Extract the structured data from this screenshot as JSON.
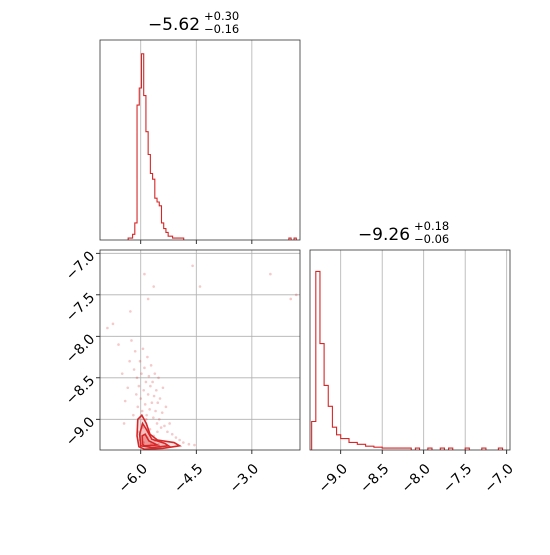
{
  "chart_data": {
    "type": "corner",
    "panels": [
      {
        "id": "hist_param1",
        "type": "histogram",
        "title": {
          "median": "−5.62",
          "plus": "+0.30",
          "minus": "−0.16"
        },
        "xlim": [
          -7.1,
          -1.7
        ],
        "x_ticks": [
          -6.0,
          -4.5,
          -3.0
        ],
        "grid": true,
        "color": "#d62728",
        "bins": [
          [
            -6.34,
            -6.28,
            0.01
          ],
          [
            -6.28,
            -6.22,
            0.01
          ],
          [
            -6.22,
            -6.16,
            0.03
          ],
          [
            -6.16,
            -6.1,
            0.09
          ],
          [
            -6.1,
            -6.04,
            0.71
          ],
          [
            -6.04,
            -5.98,
            0.8
          ],
          [
            -5.98,
            -5.92,
            0.98
          ],
          [
            -5.92,
            -5.86,
            0.76
          ],
          [
            -5.86,
            -5.8,
            0.57
          ],
          [
            -5.8,
            -5.74,
            0.45
          ],
          [
            -5.74,
            -5.68,
            0.35
          ],
          [
            -5.68,
            -5.62,
            0.32
          ],
          [
            -5.62,
            -5.56,
            0.22
          ],
          [
            -5.56,
            -5.5,
            0.2
          ],
          [
            -5.5,
            -5.44,
            0.18
          ],
          [
            -5.44,
            -5.38,
            0.09
          ],
          [
            -5.38,
            -5.32,
            0.06
          ],
          [
            -5.32,
            -5.26,
            0.04
          ],
          [
            -5.26,
            -5.2,
            0.02
          ],
          [
            -5.2,
            -5.14,
            0.02
          ],
          [
            -5.14,
            -5.08,
            0.01
          ],
          [
            -5.08,
            -5.02,
            0.01
          ],
          [
            -5.02,
            -4.96,
            0.01
          ],
          [
            -4.96,
            -4.9,
            0.01
          ],
          [
            -4.9,
            -4.84,
            0.01
          ],
          [
            -2.0,
            -1.94,
            0.01
          ],
          [
            -1.86,
            -1.8,
            0.01
          ]
        ]
      },
      {
        "id": "hist_param2",
        "type": "histogram",
        "title": {
          "median": "−9.26",
          "plus": "+0.18",
          "minus": "−0.06"
        },
        "xlim": [
          -9.37,
          -6.96
        ],
        "x_ticks": [
          -9.0,
          -8.5,
          -8.0,
          -7.5,
          -7.0
        ],
        "grid": true,
        "color": "#d62728",
        "bins": [
          [
            -9.35,
            -9.3,
            0.15
          ],
          [
            -9.3,
            -9.25,
            0.94
          ],
          [
            -9.25,
            -9.2,
            0.56
          ],
          [
            -9.2,
            -9.15,
            0.34
          ],
          [
            -9.15,
            -9.1,
            0.23
          ],
          [
            -9.1,
            -9.05,
            0.12
          ],
          [
            -9.05,
            -9.0,
            0.08
          ],
          [
            -9.0,
            -8.95,
            0.06
          ],
          [
            -8.95,
            -8.9,
            0.06
          ],
          [
            -8.9,
            -8.85,
            0.04
          ],
          [
            -8.85,
            -8.8,
            0.04
          ],
          [
            -8.8,
            -8.75,
            0.03
          ],
          [
            -8.75,
            -8.7,
            0.03
          ],
          [
            -8.7,
            -8.65,
            0.02
          ],
          [
            -8.65,
            -8.6,
            0.02
          ],
          [
            -8.6,
            -8.55,
            0.015
          ],
          [
            -8.55,
            -8.5,
            0.015
          ],
          [
            -8.5,
            -8.45,
            0.01
          ],
          [
            -8.45,
            -8.4,
            0.01
          ],
          [
            -8.4,
            -8.35,
            0.01
          ],
          [
            -8.35,
            -8.3,
            0.01
          ],
          [
            -8.3,
            -8.25,
            0.01
          ],
          [
            -8.25,
            -8.2,
            0.01
          ],
          [
            -8.2,
            -8.15,
            0.01
          ],
          [
            -8.1,
            -8.05,
            0.01
          ],
          [
            -7.95,
            -7.9,
            0.01
          ],
          [
            -7.8,
            -7.75,
            0.01
          ],
          [
            -7.7,
            -7.65,
            0.01
          ],
          [
            -7.5,
            -7.45,
            0.01
          ],
          [
            -7.3,
            -7.25,
            0.01
          ],
          [
            -7.1,
            -7.05,
            0.01
          ]
        ]
      },
      {
        "id": "joint",
        "type": "scatter_contour",
        "xlim": [
          -7.1,
          -1.7
        ],
        "ylim": [
          -9.37,
          -6.96
        ],
        "x_ticks": [
          -6.0,
          -4.5,
          -3.0
        ],
        "y_ticks": [
          -7.0,
          -7.5,
          -8.0,
          -8.5,
          -9.0
        ],
        "grid": true,
        "color": "#d62728",
        "contours": [
          [
            [
              -6.05,
              -9.33
            ],
            [
              -6.1,
              -9.2
            ],
            [
              -6.08,
              -9.0
            ],
            [
              -5.97,
              -8.95
            ],
            [
              -5.85,
              -9.05
            ],
            [
              -5.75,
              -9.18
            ],
            [
              -5.55,
              -9.25
            ],
            [
              -5.1,
              -9.28
            ],
            [
              -4.95,
              -9.32
            ],
            [
              -5.4,
              -9.35
            ],
            [
              -5.9,
              -9.36
            ],
            [
              -6.05,
              -9.33
            ]
          ],
          [
            [
              -6.0,
              -9.32
            ],
            [
              -6.03,
              -9.18
            ],
            [
              -5.95,
              -9.05
            ],
            [
              -5.85,
              -9.12
            ],
            [
              -5.7,
              -9.24
            ],
            [
              -5.35,
              -9.29
            ],
            [
              -5.25,
              -9.32
            ],
            [
              -5.7,
              -9.34
            ],
            [
              -6.0,
              -9.32
            ]
          ],
          [
            [
              -5.95,
              -9.3
            ],
            [
              -5.96,
              -9.2
            ],
            [
              -5.88,
              -9.18
            ],
            [
              -5.78,
              -9.26
            ],
            [
              -5.55,
              -9.31
            ],
            [
              -5.9,
              -9.32
            ],
            [
              -5.95,
              -9.3
            ]
          ]
        ],
        "points": [
          [
            -6.42,
            -8.78
          ],
          [
            -6.35,
            -8.62
          ],
          [
            -6.3,
            -8.3
          ],
          [
            -6.25,
            -8.05
          ],
          [
            -6.2,
            -8.95
          ],
          [
            -6.18,
            -8.4
          ],
          [
            -6.15,
            -8.18
          ],
          [
            -6.12,
            -8.7
          ],
          [
            -6.1,
            -8.5
          ],
          [
            -6.08,
            -8.85
          ],
          [
            -6.05,
            -8.6
          ],
          [
            -6.02,
            -8.3
          ],
          [
            -6.0,
            -8.75
          ],
          [
            -5.98,
            -8.45
          ],
          [
            -5.96,
            -8.9
          ],
          [
            -5.94,
            -8.15
          ],
          [
            -5.92,
            -8.65
          ],
          [
            -5.9,
            -8.38
          ],
          [
            -5.88,
            -8.82
          ],
          [
            -5.86,
            -8.55
          ],
          [
            -5.84,
            -8.95
          ],
          [
            -5.82,
            -8.25
          ],
          [
            -5.8,
            -8.7
          ],
          [
            -5.78,
            -8.48
          ],
          [
            -5.76,
            -8.88
          ],
          [
            -5.74,
            -8.6
          ],
          [
            -5.72,
            -8.35
          ],
          [
            -5.7,
            -8.8
          ],
          [
            -5.68,
            -8.55
          ],
          [
            -5.66,
            -8.98
          ],
          [
            -5.64,
            -8.72
          ],
          [
            -5.62,
            -8.45
          ],
          [
            -5.6,
            -8.9
          ],
          [
            -5.58,
            -8.65
          ],
          [
            -5.56,
            -9.05
          ],
          [
            -5.54,
            -8.8
          ],
          [
            -5.52,
            -8.5
          ],
          [
            -5.5,
            -9.0
          ],
          [
            -5.48,
            -8.75
          ],
          [
            -5.45,
            -9.1
          ],
          [
            -5.42,
            -8.92
          ],
          [
            -5.4,
            -8.62
          ],
          [
            -5.36,
            -9.08
          ],
          [
            -5.32,
            -8.85
          ],
          [
            -5.28,
            -9.15
          ],
          [
            -5.22,
            -9.05
          ],
          [
            -5.15,
            -9.18
          ],
          [
            -5.05,
            -9.22
          ],
          [
            -4.95,
            -9.25
          ],
          [
            -4.85,
            -9.28
          ],
          [
            -4.7,
            -9.3
          ],
          [
            -4.55,
            -9.31
          ],
          [
            -6.45,
            -9.05
          ],
          [
            -6.5,
            -8.45
          ],
          [
            -6.6,
            -8.1
          ],
          [
            -6.75,
            -7.85
          ],
          [
            -6.9,
            -7.9
          ],
          [
            -6.28,
            -7.7
          ],
          [
            -5.8,
            -7.55
          ],
          [
            -5.65,
            -7.4
          ],
          [
            -5.9,
            -7.25
          ],
          [
            -4.6,
            -7.15
          ],
          [
            -4.4,
            -7.4
          ],
          [
            -2.5,
            -7.25
          ],
          [
            -1.8,
            -7.5
          ],
          [
            -1.95,
            -7.55
          ],
          [
            -6.05,
            -9.15
          ],
          [
            -5.95,
            -9.1
          ],
          [
            -5.85,
            -9.0
          ],
          [
            -5.75,
            -9.12
          ],
          [
            -5.65,
            -9.2
          ],
          [
            -5.55,
            -9.15
          ],
          [
            -6.02,
            -9.25
          ],
          [
            -5.92,
            -9.28
          ],
          [
            -5.82,
            -9.22
          ],
          [
            -5.72,
            -9.3
          ],
          [
            -5.62,
            -9.26
          ],
          [
            -5.52,
            -9.3
          ]
        ]
      }
    ]
  }
}
